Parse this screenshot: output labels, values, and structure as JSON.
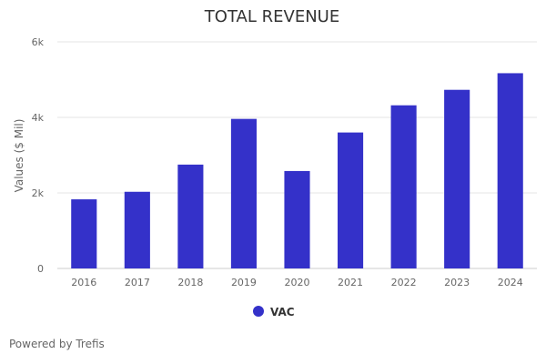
{
  "chart_data": {
    "type": "bar",
    "title": "TOTAL REVENUE",
    "ylabel": "Values ($ Mil)",
    "xlabel": "",
    "categories": [
      "2016",
      "2017",
      "2018",
      "2019",
      "2020",
      "2021",
      "2022",
      "2023",
      "2024"
    ],
    "series": [
      {
        "name": "VAC",
        "values": [
          1830,
          2030,
          2750,
          3960,
          2580,
          3600,
          4320,
          4730,
          5170
        ],
        "color": "#3431c9"
      }
    ],
    "ylim": [
      0,
      6000
    ],
    "y_ticks": [
      {
        "value": 0,
        "label": "0"
      },
      {
        "value": 2000,
        "label": "2k"
      },
      {
        "value": 4000,
        "label": "4k"
      },
      {
        "value": 6000,
        "label": "6k"
      }
    ],
    "grid": true,
    "legend_position": "bottom-center"
  },
  "footer": {
    "credit": "Powered by Trefis"
  }
}
